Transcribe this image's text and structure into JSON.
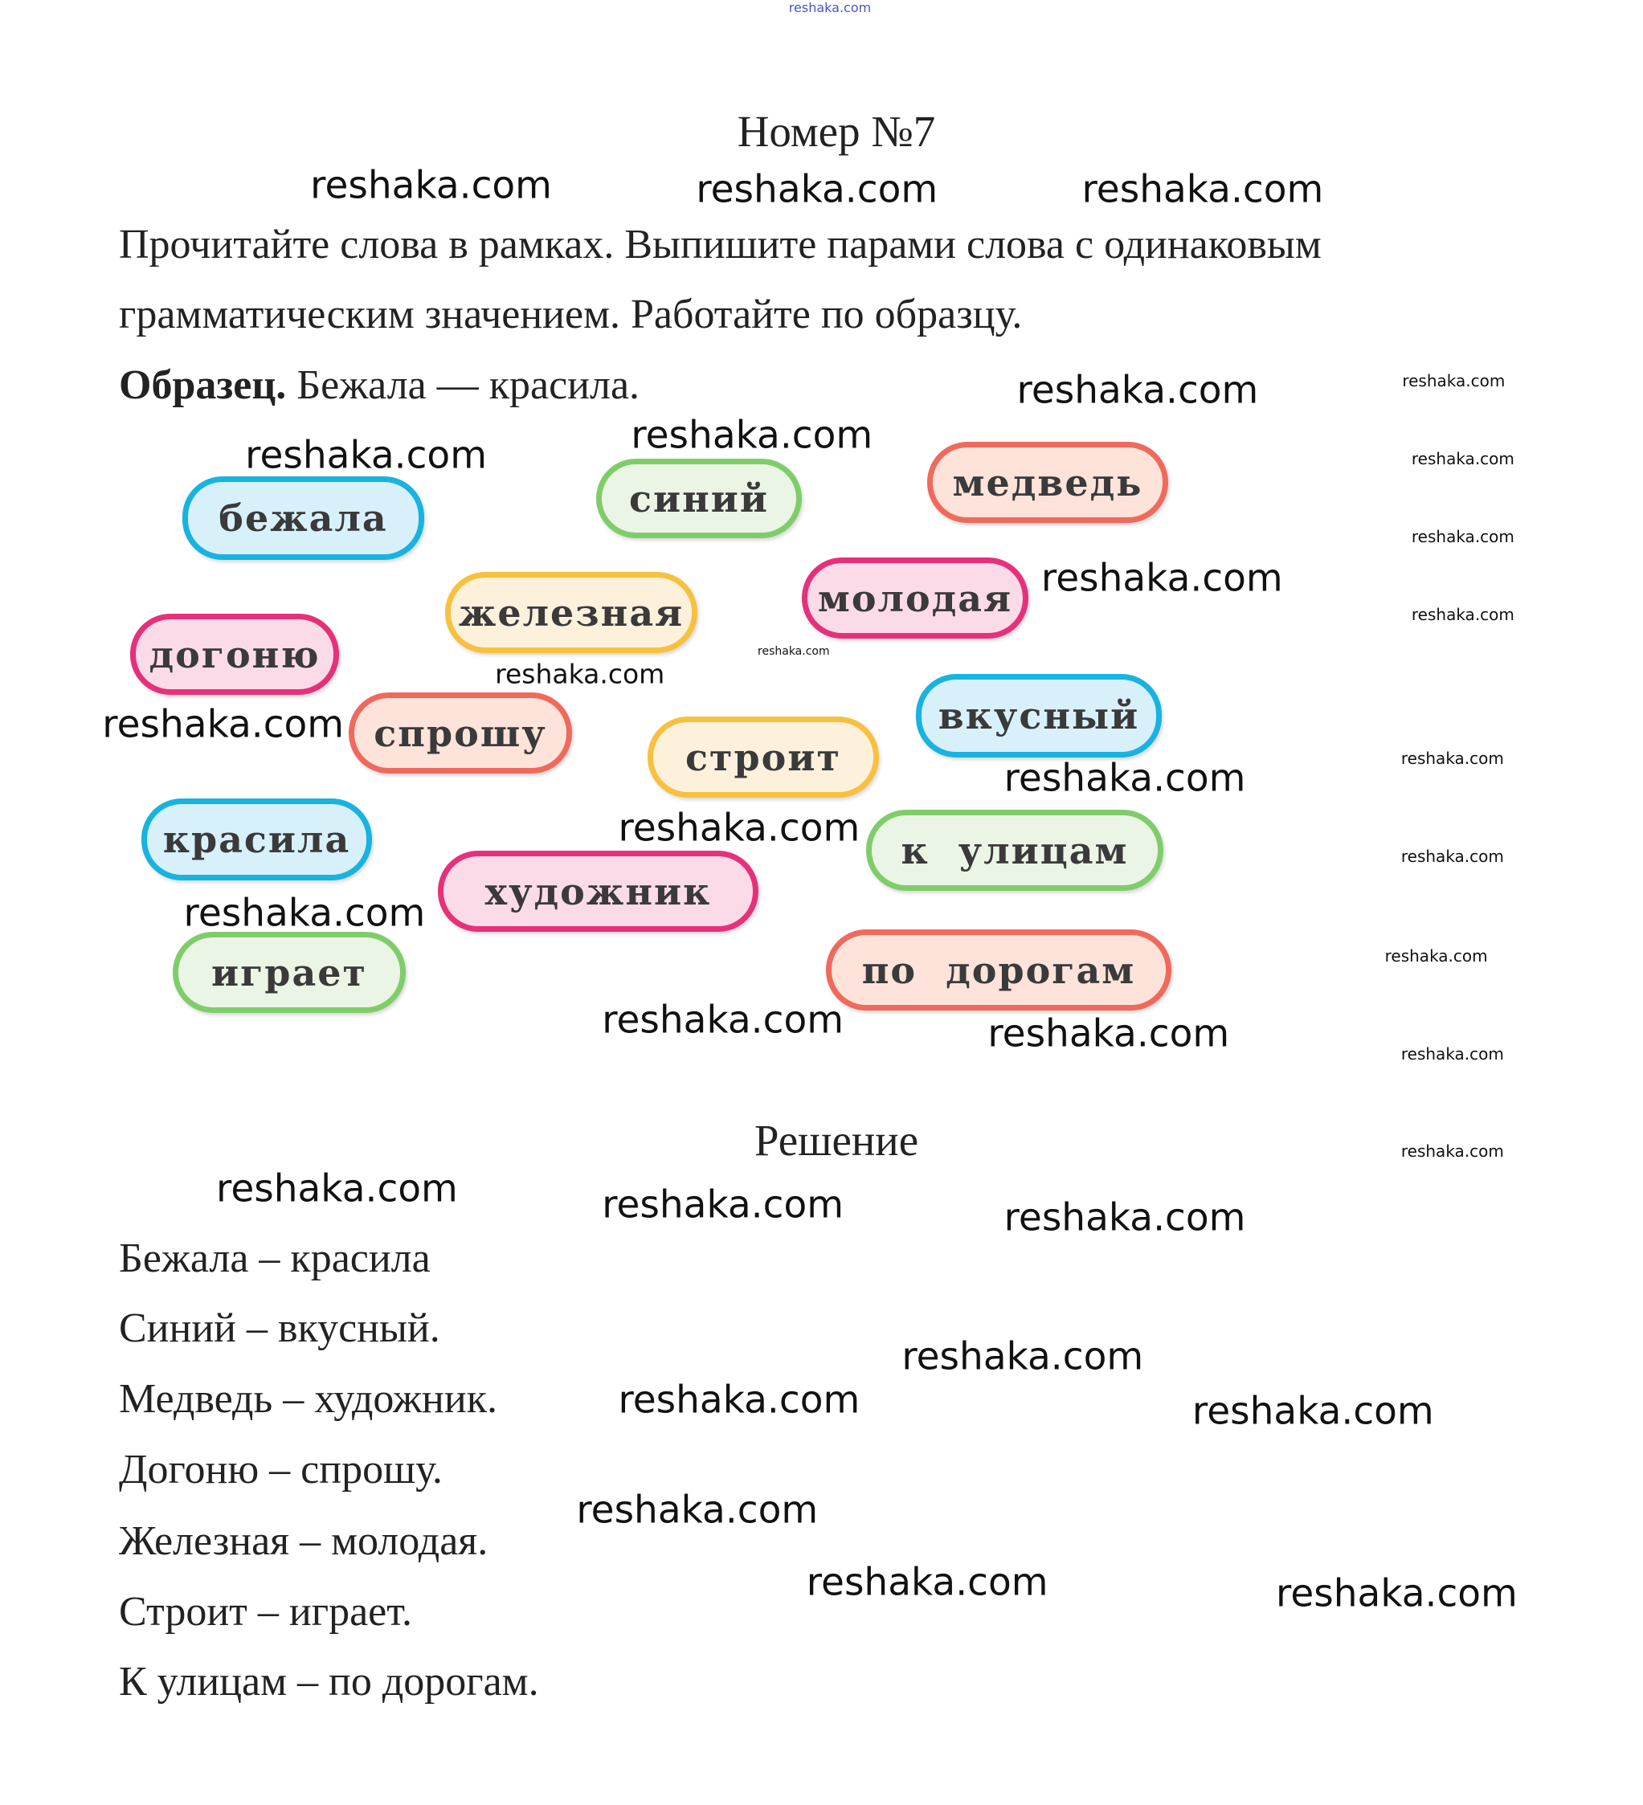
{
  "header_watermark": "reshaka.com",
  "title": "Номер №7",
  "task": {
    "line1": "Прочитайте слова в рамках. Выпишите парами слова с одинаковым",
    "line2": "грамматическим значением. Работайте по образцу.",
    "sample_label": "Образец.",
    "sample_text": " Бежала — красила."
  },
  "words": [
    {
      "text": "бежала",
      "color": "#18b3e0"
    },
    {
      "text": "синий",
      "color": "#7fcd6a"
    },
    {
      "text": "медведь",
      "color": "#ef6a5c"
    },
    {
      "text": "железная",
      "color": "#f7c13f"
    },
    {
      "text": "молодая",
      "color": "#e6317a"
    },
    {
      "text": "догоню",
      "color": "#e6317a"
    },
    {
      "text": "спрошу",
      "color": "#ef6a5c"
    },
    {
      "text": "строит",
      "color": "#f7c13f"
    },
    {
      "text": "вкусный",
      "color": "#18b3e0"
    },
    {
      "text": "красила",
      "color": "#18b3e0"
    },
    {
      "text": "художник",
      "color": "#e6317a"
    },
    {
      "text": "к  улицам",
      "color": "#7fcd6a"
    },
    {
      "text": "играет",
      "color": "#7fcd6a"
    },
    {
      "text": "по  дорогам",
      "color": "#ef6a5c"
    }
  ],
  "solution": {
    "heading": "Решение",
    "lines": [
      "Бежала – красила",
      "Синий – вкусный.",
      "Медведь – художник.",
      "Догоню – спрошу.",
      "Железная – молодая.",
      "Строит – играет.",
      "К улицам – по дорогам."
    ]
  },
  "watermark": "reshaka.com"
}
